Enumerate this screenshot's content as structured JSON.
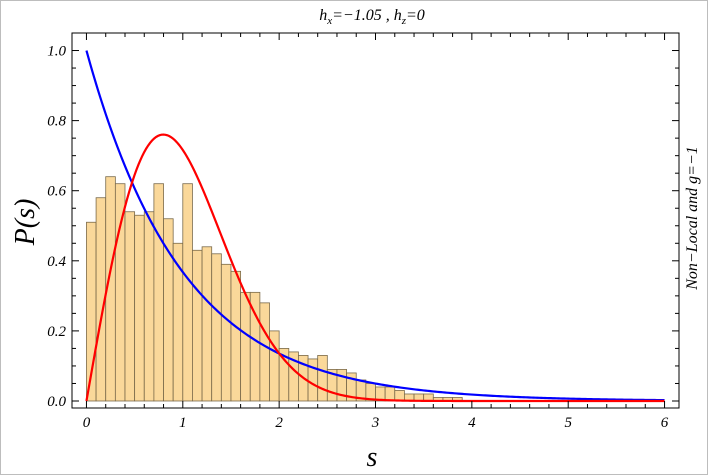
{
  "chart_data": {
    "type": "bar",
    "title": {
      "hx_sym": "h",
      "hx_sub": "x",
      "hx_val": "=−1.05 , ",
      "hz_sym": "h",
      "hz_sub": "z",
      "hz_val": "=0"
    },
    "xlabel": "s",
    "ylabel": "P(s)",
    "side_label": "Non−Local and g=−1",
    "xlim": [
      -0.15,
      6.15
    ],
    "ylim": [
      -0.02,
      1.05
    ],
    "xticks": [
      {
        "v": 0,
        "label": "0"
      },
      {
        "v": 1,
        "label": "1"
      },
      {
        "v": 2,
        "label": "2"
      },
      {
        "v": 3,
        "label": "3"
      },
      {
        "v": 4,
        "label": "4"
      },
      {
        "v": 5,
        "label": "5"
      },
      {
        "v": 6,
        "label": "6"
      }
    ],
    "yticks": [
      {
        "v": 0.0,
        "label": "0.0"
      },
      {
        "v": 0.2,
        "label": "0.2"
      },
      {
        "v": 0.4,
        "label": "0.4"
      },
      {
        "v": 0.6,
        "label": "0.6"
      },
      {
        "v": 0.8,
        "label": "0.8"
      },
      {
        "v": 1.0,
        "label": "1.0"
      }
    ],
    "histogram": {
      "bin_width": 0.1,
      "bin_start": 0.0,
      "values": [
        0.51,
        0.58,
        0.64,
        0.62,
        0.54,
        0.53,
        0.54,
        0.62,
        0.52,
        0.45,
        0.62,
        0.43,
        0.44,
        0.42,
        0.39,
        0.37,
        0.31,
        0.31,
        0.28,
        0.2,
        0.15,
        0.14,
        0.13,
        0.12,
        0.13,
        0.09,
        0.09,
        0.08,
        0.06,
        0.05,
        0.04,
        0.04,
        0.03,
        0.02,
        0.02,
        0.02,
        0.01,
        0.01,
        0.01,
        0.0
      ]
    },
    "series": [
      {
        "name": "",
        "function": "poisson",
        "color": "#0000ff",
        "x_range": [
          0,
          6
        ]
      },
      {
        "name": "",
        "function": "wigner_dyson_goe",
        "color": "#ff0000",
        "x_range": [
          0,
          6
        ]
      }
    ]
  }
}
